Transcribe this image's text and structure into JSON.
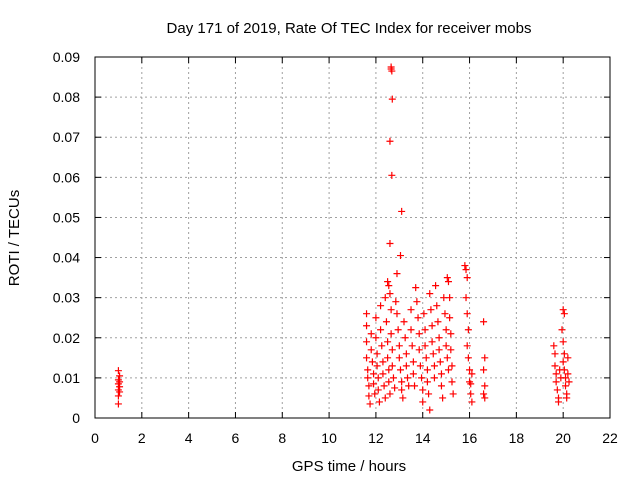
{
  "chart_data": {
    "type": "scatter",
    "title": "Day 171 of 2019, Rate Of TEC Index for receiver mobs",
    "xlabel": "GPS time / hours",
    "ylabel": "ROTI / TECUs",
    "xlim": [
      0,
      22
    ],
    "ylim": [
      0,
      0.09
    ],
    "xticks": [
      0,
      2,
      4,
      6,
      8,
      10,
      12,
      14,
      16,
      18,
      20,
      22
    ],
    "yticks": [
      0,
      0.01,
      0.02,
      0.03,
      0.04,
      0.05,
      0.06,
      0.07,
      0.08,
      0.09
    ],
    "ytick_labels": [
      "0",
      "0.01",
      "0.02",
      "0.03",
      "0.04",
      "0.05",
      "0.06",
      "0.07",
      "0.08",
      "0.09"
    ],
    "grid": true,
    "marker": "+",
    "marker_color": "#ff0000",
    "series": [
      {
        "name": "ROTI",
        "points": [
          [
            1.0,
            0.0035
          ],
          [
            1.0,
            0.0055
          ],
          [
            1.0,
            0.007
          ],
          [
            1.0,
            0.0085
          ],
          [
            1.0,
            0.0095
          ],
          [
            1.05,
            0.0105
          ],
          [
            1.0,
            0.0118
          ],
          [
            1.05,
            0.0065
          ],
          [
            1.05,
            0.0078
          ],
          [
            1.05,
            0.009
          ],
          [
            11.6,
            0.026
          ],
          [
            11.6,
            0.023
          ],
          [
            11.6,
            0.019
          ],
          [
            11.6,
            0.015
          ],
          [
            11.65,
            0.012
          ],
          [
            11.65,
            0.01
          ],
          [
            11.7,
            0.008
          ],
          [
            11.7,
            0.0055
          ],
          [
            11.75,
            0.0035
          ],
          [
            11.8,
            0.021
          ],
          [
            11.8,
            0.017
          ],
          [
            11.85,
            0.014
          ],
          [
            11.9,
            0.011
          ],
          [
            11.9,
            0.0085
          ],
          [
            11.95,
            0.006
          ],
          [
            12.0,
            0.025
          ],
          [
            12.0,
            0.02
          ],
          [
            12.05,
            0.016
          ],
          [
            12.05,
            0.013
          ],
          [
            12.1,
            0.01
          ],
          [
            12.1,
            0.007
          ],
          [
            12.15,
            0.004
          ],
          [
            12.2,
            0.028
          ],
          [
            12.2,
            0.022
          ],
          [
            12.25,
            0.018
          ],
          [
            12.3,
            0.014
          ],
          [
            12.3,
            0.011
          ],
          [
            12.35,
            0.008
          ],
          [
            12.4,
            0.005
          ],
          [
            12.4,
            0.03
          ],
          [
            12.45,
            0.024
          ],
          [
            12.5,
            0.019
          ],
          [
            12.5,
            0.015
          ],
          [
            12.55,
            0.012
          ],
          [
            12.55,
            0.009
          ],
          [
            12.6,
            0.006
          ],
          [
            12.5,
            0.034
          ],
          [
            12.55,
            0.033
          ],
          [
            12.6,
            0.031
          ],
          [
            12.65,
            0.027
          ],
          [
            12.65,
            0.021
          ],
          [
            12.7,
            0.017
          ],
          [
            12.7,
            0.013
          ],
          [
            12.75,
            0.01
          ],
          [
            12.8,
            0.0075
          ],
          [
            12.65,
            0.0875
          ],
          [
            12.65,
            0.087
          ],
          [
            12.68,
            0.0865
          ],
          [
            12.7,
            0.0795
          ],
          [
            12.6,
            0.069
          ],
          [
            12.68,
            0.0605
          ],
          [
            13.1,
            0.0515
          ],
          [
            13.05,
            0.0405
          ],
          [
            12.6,
            0.0435
          ],
          [
            12.9,
            0.036
          ],
          [
            12.85,
            0.029
          ],
          [
            12.9,
            0.026
          ],
          [
            12.95,
            0.022
          ],
          [
            13.0,
            0.018
          ],
          [
            13.0,
            0.015
          ],
          [
            13.05,
            0.012
          ],
          [
            13.1,
            0.009
          ],
          [
            13.1,
            0.007
          ],
          [
            13.15,
            0.005
          ],
          [
            13.2,
            0.024
          ],
          [
            13.25,
            0.02
          ],
          [
            13.3,
            0.016
          ],
          [
            13.3,
            0.013
          ],
          [
            13.35,
            0.01
          ],
          [
            13.4,
            0.008
          ],
          [
            13.5,
            0.027
          ],
          [
            13.5,
            0.022
          ],
          [
            13.55,
            0.018
          ],
          [
            13.6,
            0.014
          ],
          [
            13.6,
            0.011
          ],
          [
            13.65,
            0.008
          ],
          [
            13.7,
            0.0325
          ],
          [
            13.75,
            0.029
          ],
          [
            13.8,
            0.025
          ],
          [
            13.85,
            0.021
          ],
          [
            13.85,
            0.017
          ],
          [
            13.9,
            0.013
          ],
          [
            13.95,
            0.01
          ],
          [
            14.0,
            0.007
          ],
          [
            14.0,
            0.004
          ],
          [
            14.05,
            0.026
          ],
          [
            14.1,
            0.022
          ],
          [
            14.1,
            0.018
          ],
          [
            14.15,
            0.015
          ],
          [
            14.2,
            0.012
          ],
          [
            14.2,
            0.009
          ],
          [
            14.25,
            0.006
          ],
          [
            14.3,
            0.002
          ],
          [
            14.3,
            0.031
          ],
          [
            14.35,
            0.027
          ],
          [
            14.4,
            0.023
          ],
          [
            14.4,
            0.019
          ],
          [
            14.45,
            0.016
          ],
          [
            14.5,
            0.013
          ],
          [
            14.5,
            0.01
          ],
          [
            14.55,
            0.033
          ],
          [
            14.6,
            0.028
          ],
          [
            14.65,
            0.024
          ],
          [
            14.7,
            0.02
          ],
          [
            14.7,
            0.017
          ],
          [
            14.75,
            0.014
          ],
          [
            14.8,
            0.011
          ],
          [
            14.8,
            0.008
          ],
          [
            14.85,
            0.005
          ],
          [
            14.9,
            0.03
          ],
          [
            14.95,
            0.026
          ],
          [
            15.0,
            0.022
          ],
          [
            15.0,
            0.018
          ],
          [
            15.05,
            0.015
          ],
          [
            15.1,
            0.012
          ],
          [
            15.05,
            0.035
          ],
          [
            15.1,
            0.034
          ],
          [
            15.15,
            0.03
          ],
          [
            15.15,
            0.025
          ],
          [
            15.2,
            0.021
          ],
          [
            15.2,
            0.017
          ],
          [
            15.25,
            0.013
          ],
          [
            15.25,
            0.009
          ],
          [
            15.3,
            0.006
          ],
          [
            15.8,
            0.038
          ],
          [
            15.85,
            0.037
          ],
          [
            15.9,
            0.035
          ],
          [
            15.85,
            0.03
          ],
          [
            15.9,
            0.026
          ],
          [
            15.95,
            0.022
          ],
          [
            15.9,
            0.018
          ],
          [
            15.95,
            0.015
          ],
          [
            16.0,
            0.012
          ],
          [
            16.0,
            0.009
          ],
          [
            16.05,
            0.006
          ],
          [
            16.1,
            0.004
          ],
          [
            16.1,
            0.011
          ],
          [
            16.05,
            0.0085
          ],
          [
            16.6,
            0.024
          ],
          [
            16.65,
            0.015
          ],
          [
            16.6,
            0.012
          ],
          [
            16.65,
            0.008
          ],
          [
            16.6,
            0.006
          ],
          [
            16.65,
            0.005
          ],
          [
            19.6,
            0.018
          ],
          [
            19.65,
            0.016
          ],
          [
            19.65,
            0.013
          ],
          [
            19.7,
            0.011
          ],
          [
            19.7,
            0.009
          ],
          [
            19.75,
            0.007
          ],
          [
            19.8,
            0.005
          ],
          [
            19.8,
            0.004
          ],
          [
            19.85,
            0.012
          ],
          [
            19.9,
            0.01
          ],
          [
            20.0,
            0.027
          ],
          [
            20.05,
            0.026
          ],
          [
            19.95,
            0.022
          ],
          [
            20.0,
            0.019
          ],
          [
            20.05,
            0.016
          ],
          [
            20.0,
            0.014
          ],
          [
            20.05,
            0.012
          ],
          [
            20.1,
            0.01
          ],
          [
            20.1,
            0.008
          ],
          [
            20.15,
            0.006
          ],
          [
            20.15,
            0.005
          ],
          [
            20.2,
            0.015
          ],
          [
            20.2,
            0.011
          ],
          [
            20.25,
            0.009
          ]
        ]
      }
    ]
  }
}
